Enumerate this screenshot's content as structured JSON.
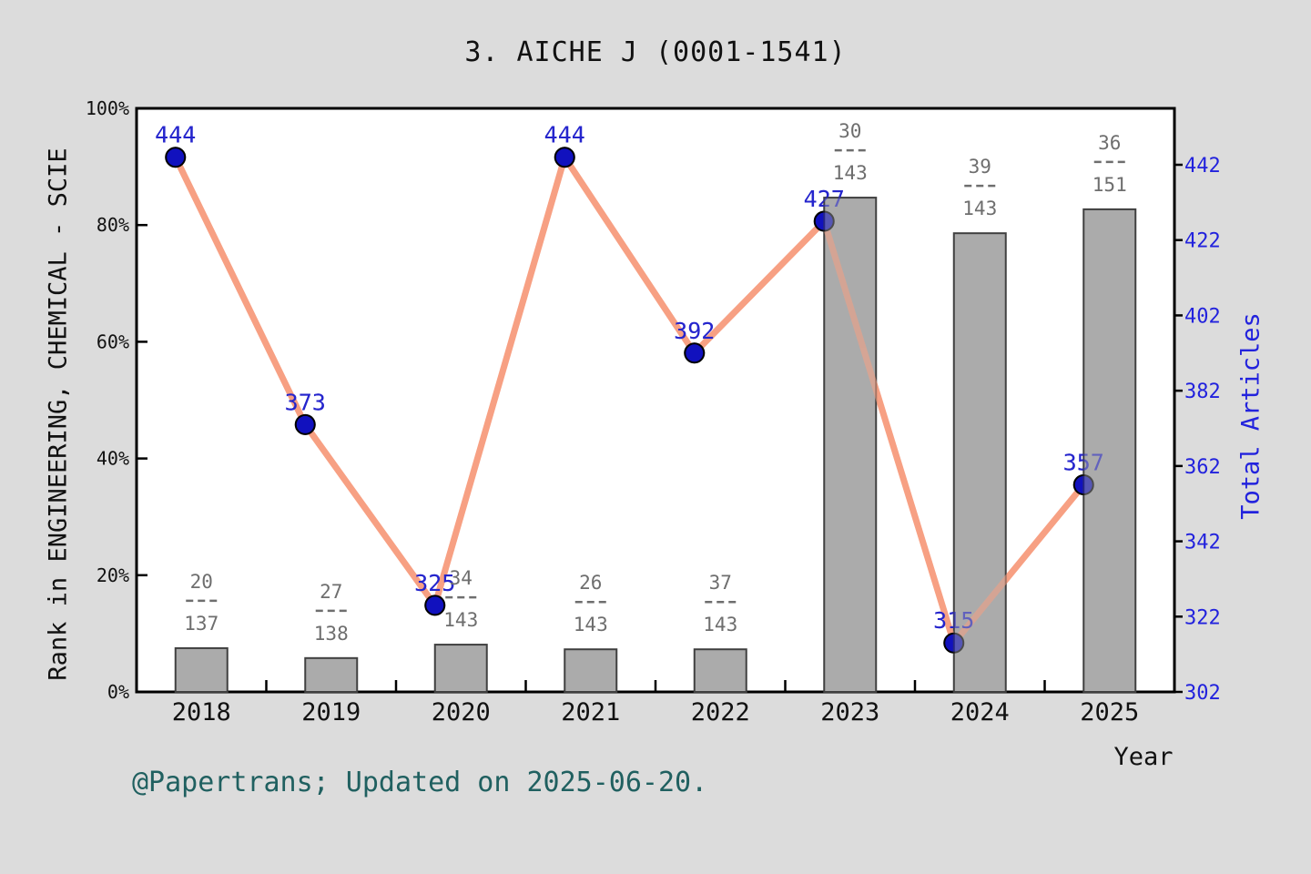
{
  "title": "3. AICHE J (0001-1541)",
  "caption": "@Papertrans; Updated on 2025-06-20.",
  "axes": {
    "left": {
      "label": "Rank in ENGINEERING, CHEMICAL - SCIE",
      "ticks": [
        "0%",
        "20%",
        "40%",
        "60%",
        "80%",
        "100%"
      ]
    },
    "right": {
      "label": "Total Articles",
      "ticks": [
        302,
        322,
        342,
        362,
        382,
        402,
        422,
        442
      ]
    },
    "x": {
      "label": "Year",
      "ticks": [
        "2018",
        "2019",
        "2020",
        "2021",
        "2022",
        "2023",
        "2024",
        "2025"
      ]
    }
  },
  "chart_data": {
    "type": "bar+line",
    "categories": [
      "2018",
      "2019",
      "2020",
      "2021",
      "2022",
      "2023",
      "2024",
      "2025"
    ],
    "bar_series": {
      "name": "Rank in ENGINEERING, CHEMICAL - SCIE (rank/total)",
      "items": [
        {
          "rank": 20,
          "total": 137,
          "height_pct": 7.5
        },
        {
          "rank": 27,
          "total": 138,
          "height_pct": 5.8
        },
        {
          "rank": 34,
          "total": 143,
          "height_pct": 8.1
        },
        {
          "rank": 26,
          "total": 143,
          "height_pct": 7.3
        },
        {
          "rank": 37,
          "total": 143,
          "height_pct": 7.3
        },
        {
          "rank": 30,
          "total": 143,
          "height_pct": 84.7
        },
        {
          "rank": 39,
          "total": 143,
          "height_pct": 78.6
        },
        {
          "rank": 36,
          "total": 151,
          "height_pct": 82.7
        }
      ]
    },
    "line_series": {
      "name": "Total Articles",
      "values": [
        444,
        373,
        325,
        444,
        392,
        427,
        315,
        357
      ]
    },
    "left_axis_range": [
      0,
      100
    ],
    "right_axis_range": [
      302,
      442
    ],
    "legend": "none",
    "grid": "off",
    "colors": {
      "background": "#DCDCDC",
      "plot_background": "#FFFFFF",
      "frame": "#000000",
      "line": "#F7A083",
      "point_fill": "#1111BE",
      "point_edge": "#000000",
      "point_label": "#2525CD",
      "bar_fill": "#ABABAB",
      "bar_edge": "#404040",
      "fraction_label": "#6E6E6E",
      "left_tick_label": "#111111",
      "right_tick_label": "#2222DD",
      "x_tick_label": "#111111",
      "caption": "#206060"
    }
  }
}
